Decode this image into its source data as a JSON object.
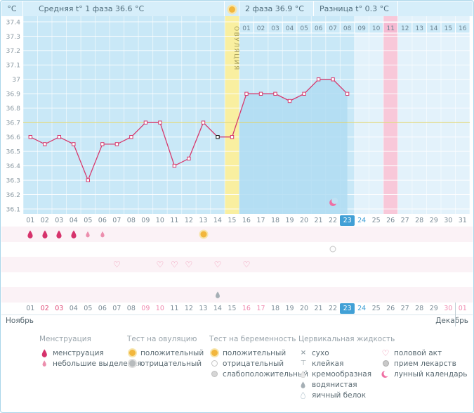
{
  "header": {
    "unit": "°C",
    "avg_phase1": "Средняя t° 1 фаза 36.6 °C",
    "avg_phase2": "2 фаза 36.9 °C",
    "difference": "Разница t° 0.3 °C"
  },
  "chart_data": {
    "type": "line",
    "ylabel": "°C",
    "ylim": [
      36.1,
      37.4
    ],
    "ytick_step": 0.1,
    "yticks": [
      "37.4",
      "37.3",
      "37.2",
      "37.1",
      "37",
      "36.9",
      "36.8",
      "36.7",
      "36.6",
      "36.5",
      "36.4",
      "36.3",
      "36.2",
      "36.1"
    ],
    "x_cycle_days": [
      1,
      2,
      3,
      4,
      5,
      6,
      7,
      8,
      9,
      10,
      11,
      12,
      13,
      14,
      15,
      16,
      17,
      18,
      19,
      20,
      21,
      22,
      23
    ],
    "values": [
      36.6,
      36.55,
      36.6,
      36.55,
      36.3,
      36.55,
      36.55,
      36.6,
      36.7,
      36.7,
      36.4,
      36.45,
      36.7,
      36.6,
      36.6,
      36.9,
      36.9,
      36.9,
      36.85,
      36.9,
      37,
      37,
      36.9
    ],
    "coverline": 36.7,
    "ovulation_day": 15,
    "ovulation_label": "ОВУЛЯЦИЯ",
    "dpo_labels": [
      "01",
      "02",
      "03",
      "04",
      "05",
      "06",
      "07",
      "08",
      "09",
      "10",
      "11",
      "12",
      "13",
      "14",
      "15",
      "16"
    ],
    "dpo_start_day": 16,
    "dpo_highlight": "11",
    "pink_column_day": 26,
    "selected_day": 14,
    "today_day": 23,
    "lunar_icon_day": 22,
    "total_days": 31,
    "line_color": "#d63a6e",
    "coverline_color": "#ddd36b",
    "past_bg": "#c9e8f7",
    "future_bg": "#e3f2fb",
    "ovulation_bg": "#f9efa0",
    "pink_bg": "#f8c8d9",
    "fill_color": "#b0dcf2"
  },
  "axis_rows": {
    "cycle_days": [
      "01",
      "02",
      "03",
      "04",
      "05",
      "06",
      "07",
      "08",
      "09",
      "10",
      "11",
      "12",
      "13",
      "14",
      "15",
      "16",
      "17",
      "18",
      "19",
      "20",
      "21",
      "22",
      "23",
      "24",
      "25",
      "26",
      "27",
      "28",
      "29",
      "30",
      "31"
    ],
    "cycle_styles": {
      "selected": 22,
      "blue": [
        23
      ]
    },
    "dates": [
      "01",
      "02",
      "03",
      "04",
      "05",
      "06",
      "07",
      "08",
      "09",
      "10",
      "11",
      "12",
      "13",
      "14",
      "15",
      "16",
      "17",
      "18",
      "19",
      "20",
      "21",
      "22",
      "23",
      "24",
      "25",
      "26",
      "27",
      "28",
      "29",
      "30",
      "01"
    ],
    "date_styles": {
      "selected": 22,
      "blue": [
        23
      ],
      "red": [
        1,
        2
      ],
      "pink": [
        8,
        9,
        15,
        16,
        29,
        30
      ]
    }
  },
  "months": {
    "left": "Ноябрь",
    "right": "Декабрь"
  },
  "events": {
    "menstruation": [
      {
        "day": 1,
        "kind": "full"
      },
      {
        "day": 2,
        "kind": "full"
      },
      {
        "day": 3,
        "kind": "full"
      },
      {
        "day": 4,
        "kind": "full"
      },
      {
        "day": 5,
        "kind": "light"
      },
      {
        "day": 6,
        "kind": "light"
      }
    ],
    "ovulation_tests": [
      {
        "day": 13,
        "result": "положительный"
      }
    ],
    "pregnancy_tests": [
      {
        "day": 22,
        "result": "отрицательный"
      }
    ],
    "intercourse_days": [
      7,
      10,
      11,
      12,
      14,
      16
    ],
    "cervical_fluid": [
      {
        "day": 14,
        "kind": "водянистая"
      }
    ]
  },
  "legend": {
    "groups": [
      {
        "title": "Менструация",
        "items": [
          {
            "icon": "drop-full",
            "label": "менструация"
          },
          {
            "icon": "drop-light",
            "label": "небольшие выделения"
          }
        ]
      },
      {
        "title": "Тест на овуляцию",
        "items": [
          {
            "icon": "circle-positive",
            "label": "положительный"
          },
          {
            "icon": "circle-negative",
            "label": "отрицательный"
          }
        ]
      },
      {
        "title": "Тест на беременность",
        "items": [
          {
            "icon": "circle-positive",
            "label": "положительный"
          },
          {
            "icon": "circle-white",
            "label": "отрицательный"
          },
          {
            "icon": "circle-weak",
            "label": "слабоположительный"
          }
        ]
      },
      {
        "title": "Цервикальная жидкость",
        "items": [
          {
            "icon": "cross",
            "label": "сухо"
          },
          {
            "icon": "sticky",
            "label": "клейкая"
          },
          {
            "icon": "drop-cream",
            "label": "кремообразная"
          },
          {
            "icon": "drop-water",
            "label": "водянистая"
          },
          {
            "icon": "drop-outline",
            "label": "яичный белок"
          }
        ]
      },
      {
        "title": "",
        "items": [
          {
            "icon": "heart",
            "label": "половой акт"
          },
          {
            "icon": "pill",
            "label": "прием лекарств"
          },
          {
            "icon": "moon",
            "label": "лунный календарь"
          }
        ]
      }
    ]
  }
}
